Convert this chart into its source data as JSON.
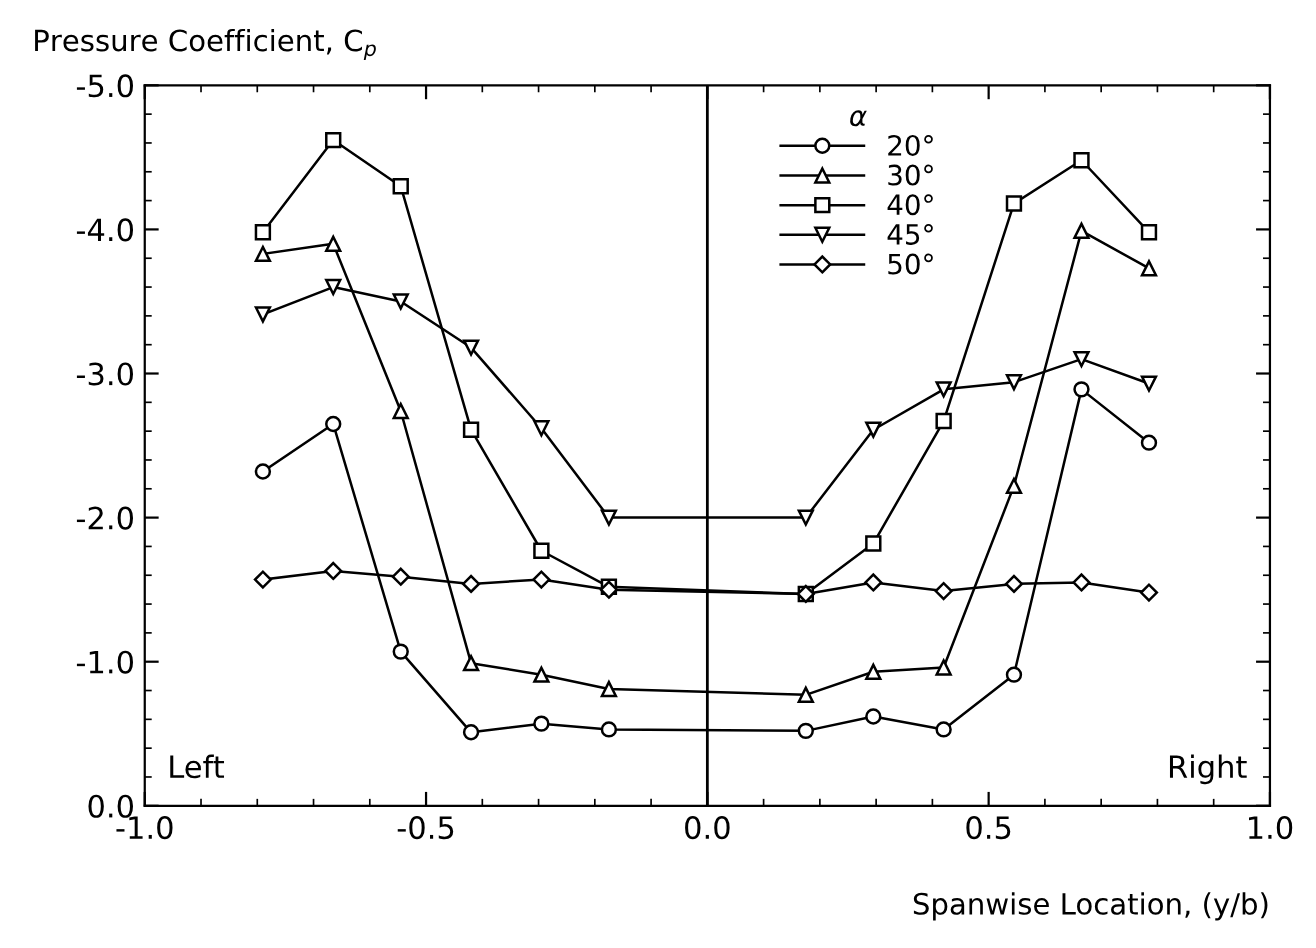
{
  "chart_data": {
    "type": "line",
    "ylabel": "Pressure Coefficient, C$_{p}$",
    "xlabel": "Spanwise Location, (y/b)",
    "legend_title": "α",
    "legend": "top right",
    "x": [
      -0.79,
      -0.665,
      -0.545,
      -0.42,
      -0.295,
      -0.175,
      0.175,
      0.295,
      0.42,
      0.545,
      0.665,
      0.785
    ],
    "series": [
      {
        "name": "20°",
        "color": "#000000",
        "marker": "circle",
        "values": [
          -2.32,
          -2.65,
          -1.07,
          -0.51,
          -0.57,
          -0.53,
          -0.52,
          -0.62,
          -0.53,
          -0.91,
          -2.89,
          -2.52
        ]
      },
      {
        "name": "30°",
        "color": "#000000",
        "marker": "triangle",
        "values": [
          -3.83,
          -3.9,
          -2.74,
          -0.99,
          -0.91,
          -0.81,
          -0.77,
          -0.93,
          -0.96,
          -2.22,
          -3.99,
          -3.73
        ]
      },
      {
        "name": "40°",
        "color": "#000000",
        "marker": "square",
        "values": [
          -3.98,
          -4.62,
          -4.3,
          -2.61,
          -1.77,
          -1.52,
          -1.47,
          -1.82,
          -2.67,
          -4.18,
          -4.48,
          -3.98
        ]
      },
      {
        "name": "45°",
        "color": "#000000",
        "marker": "triangle-down",
        "values": [
          -3.41,
          -3.6,
          -3.5,
          -3.18,
          -2.62,
          -2.0,
          -2.0,
          -2.61,
          -2.89,
          -2.94,
          -3.1,
          -2.93
        ]
      },
      {
        "name": "50°",
        "color": "#000000",
        "marker": "diamond",
        "values": [
          -1.57,
          -1.63,
          -1.59,
          -1.54,
          -1.57,
          -1.5,
          -1.47,
          -1.55,
          -1.49,
          -1.54,
          -1.55,
          -1.48
        ]
      }
    ],
    "xlim": [
      -1.0,
      1.0
    ],
    "xticks": [
      {
        "value": -1.0,
        "label": "-1.0"
      },
      {
        "value": -0.5,
        "label": "-0.5"
      },
      {
        "value": 0.0,
        "label": "0.0"
      },
      {
        "value": 0.5,
        "label": "0.5"
      },
      {
        "value": 1.0,
        "label": "1.0"
      }
    ],
    "ylim": [
      0.0,
      -5.0
    ],
    "yticks": [
      {
        "value": 0.0,
        "label": "0.0"
      },
      {
        "value": -1.0,
        "label": "-1.0"
      },
      {
        "value": -2.0,
        "label": "-2.0"
      },
      {
        "value": -3.0,
        "label": "-3.0"
      },
      {
        "value": -4.0,
        "label": "-4.0"
      },
      {
        "value": -5.0,
        "label": "-5.0"
      }
    ],
    "ref_lines": [
      {
        "axis": "x",
        "value": 0.0,
        "color": "#000000"
      }
    ],
    "annotations": [
      "Left",
      "Right"
    ],
    "grid": false
  }
}
